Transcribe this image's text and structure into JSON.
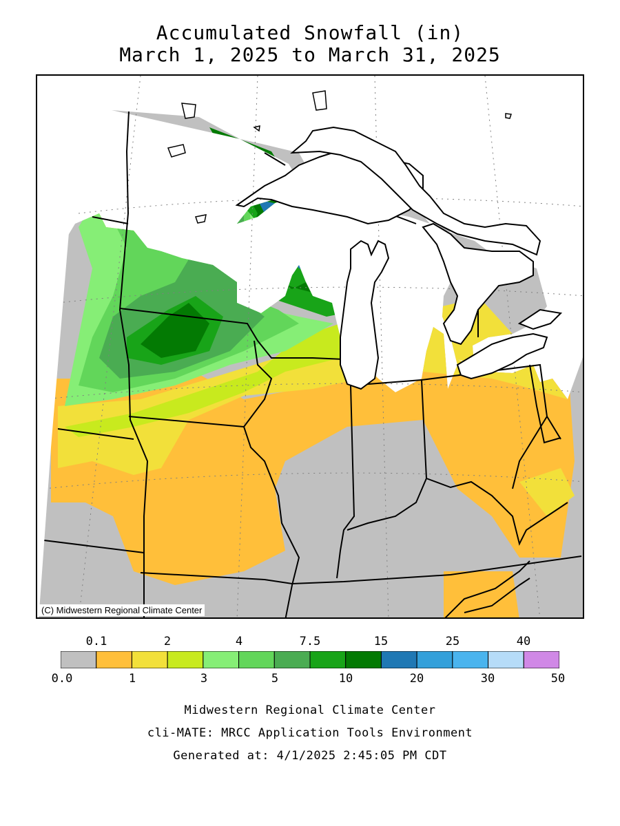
{
  "title_line1": "Accumulated Snowfall (in)",
  "title_line2": "March 1, 2025 to March 31, 2025",
  "credit": "(C) Midwestern Regional Climate Center",
  "colors": {
    "c0": "#c0c0c0",
    "c1": "#ffbf3a",
    "c2": "#f2e03a",
    "c3": "#c8ea1e",
    "c4": "#86ee76",
    "c5": "#62d65a",
    "c6": "#4aac52",
    "c7": "#18a418",
    "c8": "#037a03",
    "c9": "#1f78b4",
    "c10": "#33a0da",
    "c11": "#4ab4ee",
    "c12": "#b6dcf8",
    "c13": "#d088e6"
  },
  "legend": {
    "top_labels": [
      "0.1",
      "2",
      "4",
      "7.5",
      "15",
      "25",
      "40"
    ],
    "bottom_labels": [
      "0.0",
      "1",
      "3",
      "5",
      "10",
      "20",
      "30",
      "50"
    ]
  },
  "footer": {
    "line1": "Midwestern Regional Climate Center",
    "line2": "cli-MATE: MRCC Application Tools Environment",
    "line3": "Generated at: 4/1/2025 2:45:05 PM CDT"
  }
}
